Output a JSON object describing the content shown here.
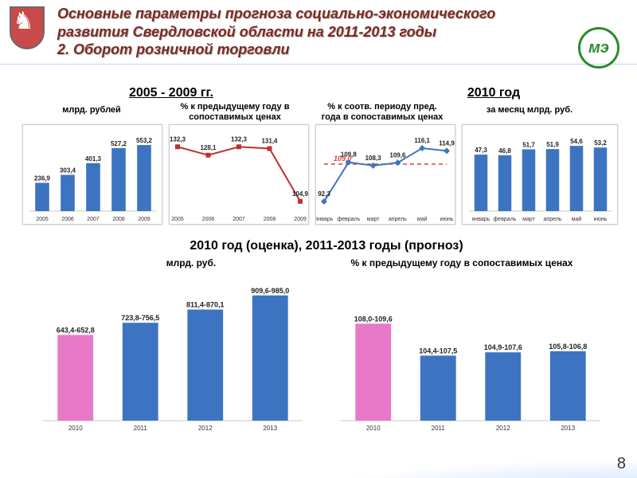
{
  "header": {
    "title_line1": "Основные параметры прогноза социально-экономического",
    "title_line2": "развития Свердловской области на 2011-2013 годы",
    "title_line3": "2. Оборот розничной торговли",
    "logo_text": "мэ"
  },
  "page_number": "8",
  "section_headers": {
    "left": "2005 - 2009 гг.",
    "right": "2010 год",
    "bottom": "2010 год (оценка), 2011-2013 годы (прогноз)"
  },
  "sub_labels": {
    "c1": "млрд. рублей",
    "c2": "% к предыдущему году в\nсопоставимых ценах",
    "c3": "% к соотв. периоду пред.\nгода в сопоставимых ценах",
    "c4": "за месяц млрд. руб.",
    "b1": "млрд. руб.",
    "b2": "% к предыдущему году в сопоставимых ценах"
  },
  "colors": {
    "bar_blue": "#3d74c2",
    "bar_pink": "#e879c8",
    "marker_red": "#c03030",
    "marker_blue": "#3d74c2",
    "dash_red": "#d94040",
    "grid": "#c9c9c9",
    "box_border": "#cfcfcf",
    "title_color": "#7a2a20"
  },
  "chart1": {
    "type": "bar",
    "categories": [
      "2005",
      "2006",
      "2007",
      "2008",
      "2009"
    ],
    "values": [
      236.9,
      303.4,
      401.3,
      527.2,
      553.2
    ],
    "ylim": [
      0,
      600
    ],
    "bar_color": "#3d74c2",
    "bar_width": 0.55,
    "label_fontsize": 9
  },
  "chart2": {
    "type": "line",
    "categories": [
      "2005",
      "2006",
      "2007",
      "2008",
      "2009"
    ],
    "values": [
      132.3,
      128.1,
      132.3,
      131.4,
      104.9
    ],
    "ylim": [
      100,
      136
    ],
    "line_color": "#c03030",
    "marker": "square",
    "marker_size": 6
  },
  "chart3": {
    "type": "line",
    "categories": [
      "январь",
      "февраль",
      "март",
      "апрель",
      "май",
      "июнь"
    ],
    "values": [
      92.3,
      109.8,
      108.3,
      109.6,
      116.1,
      114.9
    ],
    "ylim": [
      88,
      120
    ],
    "target_line": 109.0,
    "target_label": "109,0",
    "line_color": "#3d74c2",
    "marker": "diamond",
    "marker_size": 6,
    "dash_color": "#d94040"
  },
  "chart4": {
    "type": "bar",
    "categories": [
      "январь",
      "февраль",
      "март",
      "апрель",
      "май",
      "июнь"
    ],
    "values": [
      47.3,
      46.8,
      51.7,
      51.9,
      54.6,
      53.2
    ],
    "ylim": [
      0,
      60
    ],
    "bar_color": "#3d74c2",
    "bar_width": 0.55
  },
  "chart5": {
    "type": "bar",
    "categories": [
      "2010",
      "2011",
      "2012",
      "2013"
    ],
    "value_labels": [
      "643,4-652,8",
      "723,8-756,5",
      "811,4-870,1",
      "909,6-985,0"
    ],
    "heights": [
      648,
      740,
      840,
      947
    ],
    "ylim": [
      0,
      1000
    ],
    "bar_colors": [
      "#e879c8",
      "#3d74c2",
      "#3d74c2",
      "#3d74c2"
    ],
    "bar_width": 0.55,
    "label_fontsize": 11
  },
  "chart6": {
    "type": "bar",
    "categories": [
      "2010",
      "2011",
      "2012",
      "2013"
    ],
    "value_labels": [
      "108,0-109,6",
      "104,4-107,5",
      "104,9-107,6",
      "105,8-106,8"
    ],
    "heights": [
      108.8,
      105.9,
      106.2,
      106.3
    ],
    "ylim": [
      100,
      112
    ],
    "bar_colors": [
      "#e879c8",
      "#3d74c2",
      "#3d74c2",
      "#3d74c2"
    ],
    "bar_width": 0.55
  }
}
